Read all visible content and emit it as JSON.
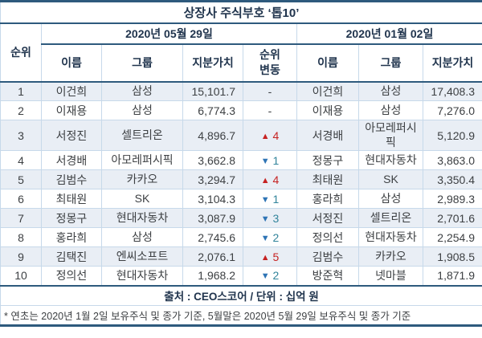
{
  "colors": {
    "heavy_rule": "#2e5a7d",
    "grid_line": "#c7d9ea",
    "stripe_bg": "#e9eef5",
    "rank_up": "#c62222",
    "rank_down_arrow": "#2e74b5",
    "rank_down_value": "#31849b"
  },
  "chart_data": {
    "type": "table",
    "title": "상장사 주식부호 ‘톱10’",
    "header": {
      "rank_label": "순위",
      "groups": [
        {
          "date": "2020년 05월 29일",
          "columns": [
            "이름",
            "그룹",
            "지분가치",
            "순위\n변동"
          ]
        },
        {
          "date": "2020년 01월 02일",
          "columns": [
            "이름",
            "그룹",
            "지분가치"
          ]
        }
      ]
    },
    "rows": [
      {
        "rank": "1",
        "may": {
          "name": "이건희",
          "group": "삼성",
          "value": "15,101.7"
        },
        "change": {
          "direction": "none",
          "symbol": "",
          "value": "-"
        },
        "jan": {
          "name": "이건희",
          "group": "삼성",
          "value": "17,408.3"
        }
      },
      {
        "rank": "2",
        "may": {
          "name": "이재용",
          "group": "삼성",
          "value": "6,774.3"
        },
        "change": {
          "direction": "none",
          "symbol": "",
          "value": "-"
        },
        "jan": {
          "name": "이재용",
          "group": "삼성",
          "value": "7,276.0"
        }
      },
      {
        "rank": "3",
        "may": {
          "name": "서정진",
          "group": "셀트리온",
          "value": "4,896.7"
        },
        "change": {
          "direction": "up",
          "symbol": "▲",
          "value": "4"
        },
        "jan": {
          "name": "서경배",
          "group": "아모레퍼시픽",
          "value": "5,120.9"
        }
      },
      {
        "rank": "4",
        "may": {
          "name": "서경배",
          "group": "아모레퍼시픽",
          "value": "3,662.8"
        },
        "change": {
          "direction": "down",
          "symbol": "▼",
          "value": "1"
        },
        "jan": {
          "name": "정몽구",
          "group": "현대자동차",
          "value": "3,863.0"
        }
      },
      {
        "rank": "5",
        "may": {
          "name": "김범수",
          "group": "카카오",
          "value": "3,294.7"
        },
        "change": {
          "direction": "up",
          "symbol": "▲",
          "value": "4"
        },
        "jan": {
          "name": "최태원",
          "group": "SK",
          "value": "3,350.4"
        }
      },
      {
        "rank": "6",
        "may": {
          "name": "최태원",
          "group": "SK",
          "value": "3,104.3"
        },
        "change": {
          "direction": "down",
          "symbol": "▼",
          "value": "1"
        },
        "jan": {
          "name": "홍라희",
          "group": "삼성",
          "value": "2,989.3"
        }
      },
      {
        "rank": "7",
        "may": {
          "name": "정몽구",
          "group": "현대자동차",
          "value": "3,087.9"
        },
        "change": {
          "direction": "down",
          "symbol": "▼",
          "value": "3"
        },
        "jan": {
          "name": "서정진",
          "group": "셀트리온",
          "value": "2,701.6"
        }
      },
      {
        "rank": "8",
        "may": {
          "name": "홍라희",
          "group": "삼성",
          "value": "2,745.6"
        },
        "change": {
          "direction": "down",
          "symbol": "▼",
          "value": "2"
        },
        "jan": {
          "name": "정의선",
          "group": "현대자동차",
          "value": "2,254.9"
        }
      },
      {
        "rank": "9",
        "may": {
          "name": "김택진",
          "group": "엔씨소프트",
          "value": "2,076.1"
        },
        "change": {
          "direction": "up",
          "symbol": "▲",
          "value": "5"
        },
        "jan": {
          "name": "김범수",
          "group": "카카오",
          "value": "1,908.5"
        }
      },
      {
        "rank": "10",
        "may": {
          "name": "정의선",
          "group": "현대자동차",
          "value": "1,968.2"
        },
        "change": {
          "direction": "down",
          "symbol": "▼",
          "value": "2"
        },
        "jan": {
          "name": "방준혁",
          "group": "넷마블",
          "value": "1,871.9"
        }
      }
    ],
    "footer": {
      "source": "출처 : CEO스코어 / 단위 : 십억 원",
      "note": "* 연초는 2020년 1월 2일 보유주식 및 종가 기준, 5월말은 2020년 5월 29일 보유주식 및 종가 기준"
    }
  }
}
